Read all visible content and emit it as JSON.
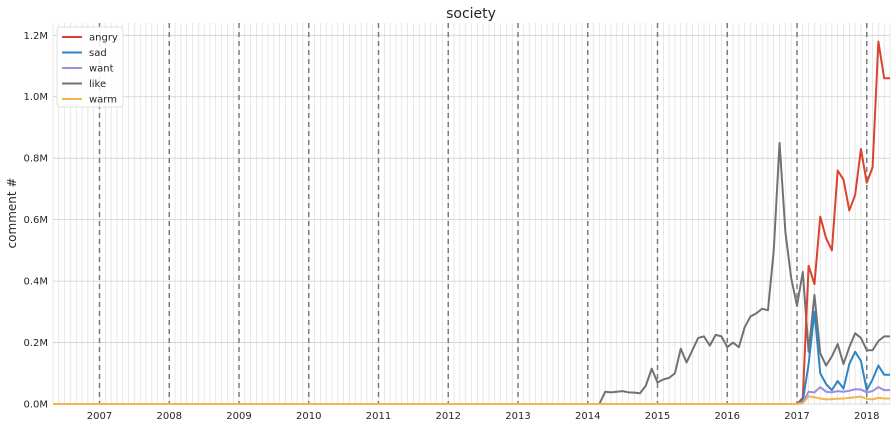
{
  "chart_data": {
    "type": "line",
    "title": "society",
    "xlabel": "",
    "ylabel": "comment #",
    "x_start": "2006-05",
    "x_end": "2018-05",
    "ylim": [
      0,
      1240000
    ],
    "y_ticks": [
      {
        "value": 0,
        "label": "0.0M"
      },
      {
        "value": 200000,
        "label": "0.2M"
      },
      {
        "value": 400000,
        "label": "0.4M"
      },
      {
        "value": 600000,
        "label": "0.6M"
      },
      {
        "value": 800000,
        "label": "0.8M"
      },
      {
        "value": 1000000,
        "label": "1.0M"
      },
      {
        "value": 1200000,
        "label": "1.2M"
      }
    ],
    "x_ticks": [
      {
        "date": "2007-01",
        "label": "2007"
      },
      {
        "date": "2008-01",
        "label": "2008"
      },
      {
        "date": "2009-01",
        "label": "2009"
      },
      {
        "date": "2010-01",
        "label": "2010"
      },
      {
        "date": "2011-01",
        "label": "2011"
      },
      {
        "date": "2012-01",
        "label": "2012"
      },
      {
        "date": "2013-01",
        "label": "2013"
      },
      {
        "date": "2014-01",
        "label": "2014"
      },
      {
        "date": "2015-01",
        "label": "2015"
      },
      {
        "date": "2016-01",
        "label": "2016"
      },
      {
        "date": "2017-01",
        "label": "2017"
      },
      {
        "date": "2018-01",
        "label": "2018"
      }
    ],
    "grid": true,
    "minor_grid": "monthly",
    "year_lines": "dashed",
    "legend_position": "top-left",
    "series": [
      {
        "name": "angry",
        "color": "#d9432f",
        "x": [
          "2006-05",
          "2017-01",
          "2017-02",
          "2017-03",
          "2017-04",
          "2017-05",
          "2017-06",
          "2017-07",
          "2017-08",
          "2017-09",
          "2017-10",
          "2017-11",
          "2017-12",
          "2018-01",
          "2018-02",
          "2018-03",
          "2018-04",
          "2018-05"
        ],
        "values": [
          0,
          0,
          20000,
          450000,
          390000,
          610000,
          540000,
          500000,
          760000,
          730000,
          630000,
          680000,
          830000,
          720000,
          770000,
          1180000,
          1060000,
          1060000
        ]
      },
      {
        "name": "sad",
        "color": "#2f86c3",
        "x": [
          "2006-05",
          "2017-01",
          "2017-02",
          "2017-03",
          "2017-04",
          "2017-05",
          "2017-06",
          "2017-07",
          "2017-08",
          "2017-09",
          "2017-10",
          "2017-11",
          "2017-12",
          "2018-01",
          "2018-02",
          "2018-03",
          "2018-04",
          "2018-05"
        ],
        "values": [
          0,
          0,
          10000,
          130000,
          300000,
          100000,
          65000,
          45000,
          75000,
          50000,
          130000,
          170000,
          140000,
          45000,
          80000,
          125000,
          95000,
          95000
        ]
      },
      {
        "name": "want",
        "color": "#9b8ddf",
        "x": [
          "2006-05",
          "2017-01",
          "2017-02",
          "2017-03",
          "2017-04",
          "2017-05",
          "2017-06",
          "2017-07",
          "2017-08",
          "2017-09",
          "2017-10",
          "2017-11",
          "2017-12",
          "2018-01",
          "2018-02",
          "2018-03",
          "2018-04",
          "2018-05"
        ],
        "values": [
          0,
          0,
          5000,
          40000,
          38000,
          55000,
          40000,
          38000,
          42000,
          40000,
          43000,
          48000,
          47000,
          38000,
          42000,
          55000,
          45000,
          45000
        ]
      },
      {
        "name": "like",
        "color": "#727272",
        "x": [
          "2006-05",
          "2014-03",
          "2014-04",
          "2014-05",
          "2014-06",
          "2014-07",
          "2014-08",
          "2014-09",
          "2014-10",
          "2014-11",
          "2014-12",
          "2015-01",
          "2015-02",
          "2015-03",
          "2015-04",
          "2015-05",
          "2015-06",
          "2015-07",
          "2015-08",
          "2015-09",
          "2015-10",
          "2015-11",
          "2015-12",
          "2016-01",
          "2016-02",
          "2016-03",
          "2016-04",
          "2016-05",
          "2016-06",
          "2016-07",
          "2016-08",
          "2016-09",
          "2016-10",
          "2016-11",
          "2016-12",
          "2017-01",
          "2017-02",
          "2017-03",
          "2017-04",
          "2017-05",
          "2017-06",
          "2017-07",
          "2017-08",
          "2017-09",
          "2017-10",
          "2017-11",
          "2017-12",
          "2018-01",
          "2018-02",
          "2018-03",
          "2018-04",
          "2018-05"
        ],
        "values": [
          0,
          0,
          40000,
          38000,
          40000,
          42000,
          38000,
          37000,
          35000,
          60000,
          115000,
          70000,
          80000,
          85000,
          100000,
          180000,
          135000,
          175000,
          215000,
          220000,
          190000,
          225000,
          220000,
          185000,
          200000,
          185000,
          250000,
          285000,
          295000,
          310000,
          305000,
          500000,
          850000,
          560000,
          410000,
          320000,
          430000,
          170000,
          355000,
          165000,
          125000,
          155000,
          195000,
          130000,
          185000,
          230000,
          215000,
          175000,
          175000,
          205000,
          220000,
          220000
        ]
      },
      {
        "name": "warm",
        "color": "#f3b54f",
        "x": [
          "2006-05",
          "2017-01",
          "2017-02",
          "2017-03",
          "2017-04",
          "2017-05",
          "2017-06",
          "2017-07",
          "2017-08",
          "2017-09",
          "2017-10",
          "2017-11",
          "2017-12",
          "2018-01",
          "2018-02",
          "2018-03",
          "2018-04",
          "2018-05"
        ],
        "values": [
          0,
          0,
          3000,
          25000,
          22000,
          18000,
          15000,
          16000,
          17000,
          18000,
          20000,
          22000,
          24000,
          17000,
          15000,
          20000,
          18000,
          18000
        ]
      }
    ]
  }
}
